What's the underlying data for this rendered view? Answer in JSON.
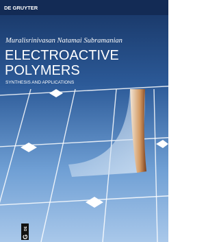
{
  "publisher": "DE GRUYTER",
  "author": "Muralisrinivasan Natamai Subramanian",
  "title": [
    "ELECTROACTIVE",
    "POLYMERS"
  ],
  "subtitle": "SYNTHESIS AND APPLICATIONS",
  "logo": {
    "top": "DE",
    "bottom": "G"
  }
}
